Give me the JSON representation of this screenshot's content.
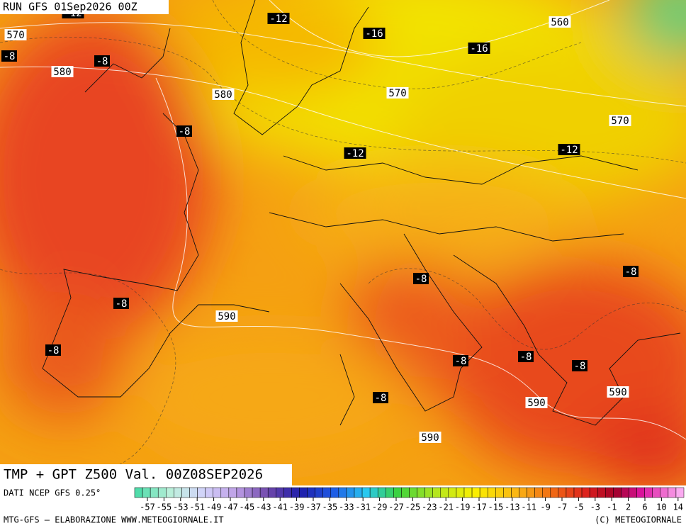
{
  "header": {
    "run": "RUN GFS 01Sep2026 00Z"
  },
  "footer": {
    "title": "TMP + GPT Z500 Val. 00Z08SEP2026",
    "source": "DATI NCEP GFS 0.25°",
    "credit": "MTG-GFS — ELABORAZIONE WWW.METEOGIORNALE.IT",
    "copyright": "(C) METEOGIORNALE"
  },
  "map_labels": [
    "-12",
    "570",
    "-8",
    "-8",
    "580",
    "-12",
    "-16",
    "560",
    "-16",
    "580",
    "570",
    "-8",
    "570",
    "-12",
    "-12",
    "-8",
    "-8",
    "-8",
    "590",
    "-8",
    "-8",
    "-8",
    "-8",
    "590",
    "-8",
    "590",
    "590"
  ],
  "scale_labels": [
    "-57",
    "-55",
    "-53",
    "-51",
    "-49",
    "-47",
    "-45",
    "-43",
    "-41",
    "-39",
    "-37",
    "-35",
    "-33",
    "-31",
    "-29",
    "-27",
    "-25",
    "-23",
    "-21",
    "-19",
    "-17",
    "-15",
    "-13",
    "-11",
    "-9",
    "-7",
    "-5",
    "-3",
    "-1",
    "2",
    "6",
    "10",
    "14"
  ]
}
